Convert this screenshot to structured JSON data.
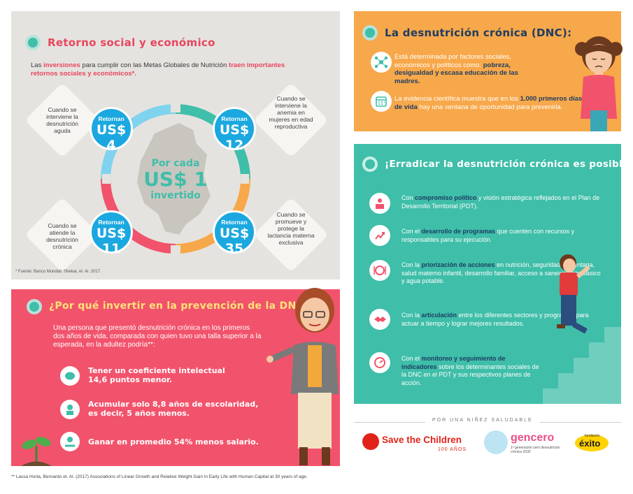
{
  "social": {
    "title": "Retorno social y económico",
    "intro_pre": "Las ",
    "intro_hl1": "inversiones",
    "intro_mid": " para cumplir con las Metas Globales de Nutrición ",
    "intro_hl2": "traen importantes retornos sociales y económicos*.",
    "center_line1": "Por cada",
    "center_line2": "US$ 1",
    "center_line3": "invertido",
    "returns": [
      {
        "label": "Retornan",
        "value": "US$ 4",
        "desc": "Cuando se interviene la desnutrición aguda"
      },
      {
        "label": "Retornan",
        "value": "US$ 12",
        "desc": "Cuando se interviene la anemia en mujeres en edad reproductiva"
      },
      {
        "label": "Retornan",
        "value": "US$ 11",
        "desc": "Cuando se atiende la desnutrición crónica"
      },
      {
        "label": "Retornan",
        "value": "US$ 35",
        "desc": "Cuando se promueve y protege la lactancia materna exclusiva"
      }
    ],
    "source": "* Fuente: Banco Mundial. Shekar, et. Al. 2017."
  },
  "dnc": {
    "title": "La desnutrición crónica (DNC):",
    "p1_pre": "Está determinada por factores sociales, económicos y políticos como: ",
    "p1_hl": "pobreza, desigualdad y escasa educación de las madres.",
    "p2_pre": "La evidencia científica muestra que en los ",
    "p2_hl": "1.000 primeros días de vida",
    "p2_post": " hay una ventana de oportunidad para prevenirla."
  },
  "erradicar": {
    "title": "¡Erradicar la desnutrición crónica es posible!",
    "items": [
      {
        "pre": "Con ",
        "hl": "compromiso político",
        "post": " y visión estratégica reflejados en el Plan de Desarrollo Territorial (PDT)."
      },
      {
        "pre": "Con el ",
        "hl": "desarrollo de programas",
        "post": " que cuenten con recursos y responsables para su ejecución."
      },
      {
        "pre": "Con la ",
        "hl": "priorización de acciones",
        "post": " en nutrición, seguridad alimentaria, salud materno infantil, desarrollo familiar, acceso a saneamiento básico y agua potable."
      },
      {
        "pre": "Con la ",
        "hl": "articulación",
        "post": " entre los diferentes sectores y programas para actuar a tiempo y lograr mejores resultados."
      },
      {
        "pre": "Con el ",
        "hl": "monitoreo y seguimiento de indicadores",
        "post": " sobre los determinantes sociales de la DNC en el PDT y sus respectivos planes de acción."
      }
    ]
  },
  "porque": {
    "title": "¿Por qué invertir en la prevención de la DNC?",
    "intro": "Una persona que presentó desnutrición crónica en los primeros dos años de vida, comparada con quien tuvo una talla superior a la esperada, en la adultez podría**:",
    "items": [
      {
        "line1": "Tener un coeficiente intelectual",
        "line2": "14,6 puntos menor."
      },
      {
        "line1": "Acumular solo 8,8 años de escolaridad,",
        "line2": "es decir, 5 años menos."
      },
      {
        "line1": "Ganar en promedio 54% menos salario.",
        "line2": ""
      }
    ]
  },
  "footer_source": "** Lassa Horta, Bernardo et. Al. (2017) Associations of Linear Growth and Relative Weight Gain in Early Life with Human Capital at 30 years of age.",
  "logos": {
    "tagline": "POR UNA NIÑEZ SALUDABLE",
    "stc": "Save the Children",
    "stc_sub": "100 AÑOS",
    "gencero": "gencero",
    "gencero_sub": "1ª generación cero desnutrición crónica 2030",
    "exito_small": "fundación",
    "exito": "éxito"
  },
  "colors": {
    "teal": "#3fbea9",
    "orange": "#f7a84a",
    "pink": "#f2536c",
    "blue": "#1ba8e0",
    "navy": "#1d3d63"
  }
}
